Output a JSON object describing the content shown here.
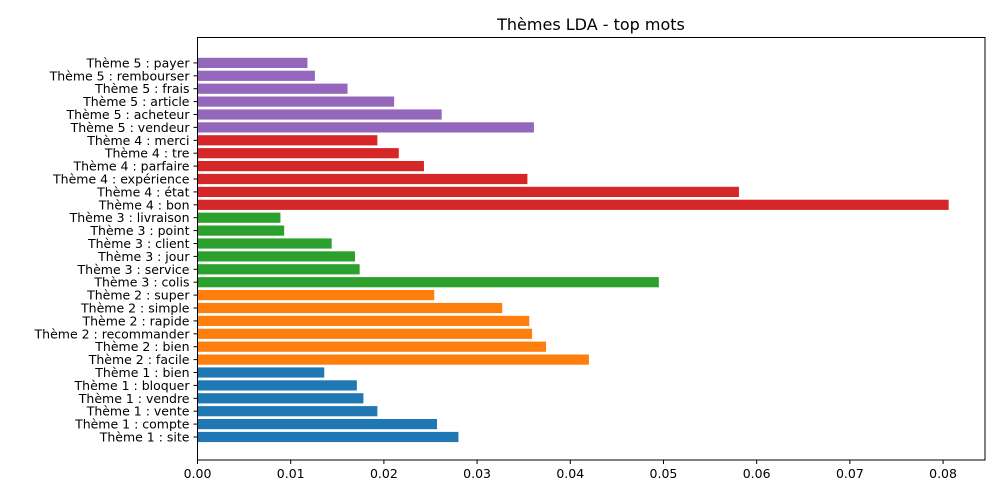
{
  "chart_data": {
    "type": "bar",
    "orientation": "horizontal",
    "title": "Thèmes LDA - top mots",
    "xlabel": "",
    "ylabel": "",
    "xlim": [
      0,
      0.0845
    ],
    "x_ticks": [
      "0.00",
      "0.01",
      "0.02",
      "0.03",
      "0.04",
      "0.05",
      "0.06",
      "0.07",
      "0.08"
    ],
    "grid": false,
    "legend": "none",
    "theme_colors": {
      "1": "#1f77b4",
      "2": "#ff7f0e",
      "3": "#2ca02c",
      "4": "#d62728",
      "5": "#9467bd"
    },
    "bars": [
      {
        "label": "Thème 1 : site",
        "theme": 1,
        "value": 0.028
      },
      {
        "label": "Thème 1 : compte",
        "theme": 1,
        "value": 0.0257
      },
      {
        "label": "Thème 1 : vente",
        "theme": 1,
        "value": 0.0193
      },
      {
        "label": "Thème 1 : vendre",
        "theme": 1,
        "value": 0.0178
      },
      {
        "label": "Thème 1 : bloquer",
        "theme": 1,
        "value": 0.0171
      },
      {
        "label": "Thème 1 : bien",
        "theme": 1,
        "value": 0.0136
      },
      {
        "label": "Thème 2 : facile",
        "theme": 2,
        "value": 0.042
      },
      {
        "label": "Thème 2 : bien",
        "theme": 2,
        "value": 0.0374
      },
      {
        "label": "Thème 2 : recommander",
        "theme": 2,
        "value": 0.0359
      },
      {
        "label": "Thème 2 : rapide",
        "theme": 2,
        "value": 0.0356
      },
      {
        "label": "Thème 2 : simple",
        "theme": 2,
        "value": 0.0327
      },
      {
        "label": "Thème 2 : super",
        "theme": 2,
        "value": 0.0254
      },
      {
        "label": "Thème 3 : colis",
        "theme": 3,
        "value": 0.0495
      },
      {
        "label": "Thème 3 : service",
        "theme": 3,
        "value": 0.0174
      },
      {
        "label": "Thème 3 : jour",
        "theme": 3,
        "value": 0.0169
      },
      {
        "label": "Thème 3 : client",
        "theme": 3,
        "value": 0.0144
      },
      {
        "label": "Thème 3 : point",
        "theme": 3,
        "value": 0.0093
      },
      {
        "label": "Thème 3 : livraison",
        "theme": 3,
        "value": 0.0089
      },
      {
        "label": "Thème 4 : bon",
        "theme": 4,
        "value": 0.0806
      },
      {
        "label": "Thème 4 : état",
        "theme": 4,
        "value": 0.0581
      },
      {
        "label": "Thème 4 : expérience",
        "theme": 4,
        "value": 0.0354
      },
      {
        "label": "Thème 4 : parfaire",
        "theme": 4,
        "value": 0.0243
      },
      {
        "label": "Thème 4 : tre",
        "theme": 4,
        "value": 0.0216
      },
      {
        "label": "Thème 4 : merci",
        "theme": 4,
        "value": 0.0193
      },
      {
        "label": "Thème 5 : vendeur",
        "theme": 5,
        "value": 0.0361
      },
      {
        "label": "Thème 5 : acheteur",
        "theme": 5,
        "value": 0.0262
      },
      {
        "label": "Thème 5 : article",
        "theme": 5,
        "value": 0.0211
      },
      {
        "label": "Thème 5 : frais",
        "theme": 5,
        "value": 0.0161
      },
      {
        "label": "Thème 5 : rembourser",
        "theme": 5,
        "value": 0.0126
      },
      {
        "label": "Thème 5 : payer",
        "theme": 5,
        "value": 0.0118
      }
    ]
  }
}
